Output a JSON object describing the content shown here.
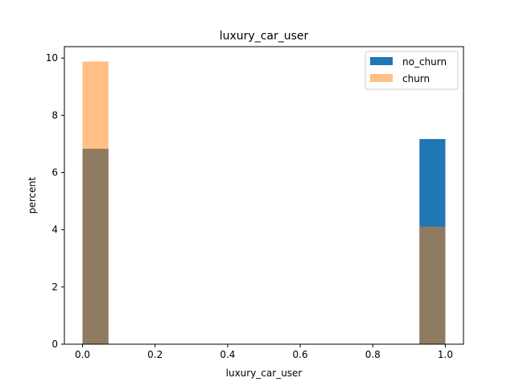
{
  "chart_data": {
    "type": "bar",
    "title": "luxury_car_user",
    "xlabel": "luxury_car_user",
    "ylabel": "percent",
    "xlim": [
      -0.05,
      1.05
    ],
    "ylim": [
      0,
      10.4
    ],
    "xticks": [
      0.0,
      0.2,
      0.4,
      0.6,
      0.8,
      1.0
    ],
    "xtick_labels": [
      "0.0",
      "0.2",
      "0.4",
      "0.6",
      "0.8",
      "1.0"
    ],
    "yticks": [
      0,
      2,
      4,
      6,
      8,
      10
    ],
    "ytick_labels": [
      "0",
      "2",
      "4",
      "6",
      "8",
      "10"
    ],
    "bin_width": 0.0714,
    "legend_position": "top-right",
    "grid": false,
    "series": [
      {
        "name": "no_churn",
        "color": "#1f77b4",
        "opacity": 1.0,
        "bars": [
          {
            "x": 0.0,
            "value": 6.83
          },
          {
            "x": 0.9286,
            "value": 7.17
          }
        ]
      },
      {
        "name": "churn",
        "color": "#ff7f0e",
        "opacity": 0.5,
        "bars": [
          {
            "x": 0.0,
            "value": 9.88
          },
          {
            "x": 0.9286,
            "value": 4.11
          }
        ]
      }
    ]
  }
}
